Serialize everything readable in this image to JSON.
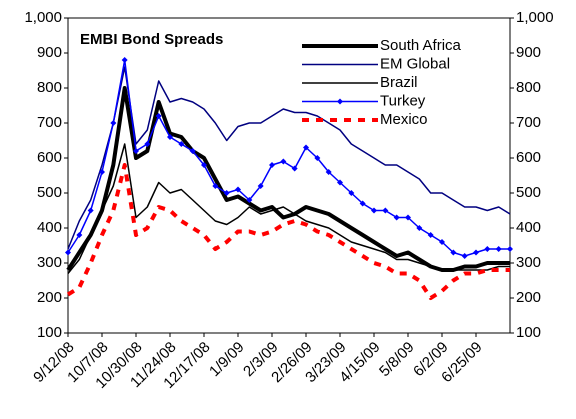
{
  "chart_data": {
    "type": "line",
    "title": "EMBI Bond Spreads",
    "categories": [
      "9/12/08",
      null,
      null,
      "10/7/08",
      null,
      null,
      "10/30/08",
      null,
      null,
      "11/24/08",
      null,
      null,
      "12/17/08",
      null,
      null,
      "1/9/09",
      null,
      null,
      "2/3/09",
      null,
      null,
      "2/26/09",
      null,
      null,
      "3/23/09",
      null,
      null,
      "4/15/09",
      null,
      null,
      "5/8/09",
      null,
      null,
      "6/2/09",
      null,
      null,
      "6/25/09",
      null,
      null,
      null
    ],
    "series": [
      {
        "name": "South Africa",
        "color": "#000000",
        "values": [
          280,
          330,
          380,
          450,
          580,
          800,
          600,
          620,
          760,
          670,
          660,
          620,
          600,
          540,
          480,
          490,
          470,
          450,
          460,
          430,
          440,
          460,
          450,
          440,
          420,
          400,
          380,
          360,
          340,
          320,
          330,
          310,
          290,
          280,
          280,
          290,
          290,
          300,
          300,
          300
        ]
      },
      {
        "name": "EM Global",
        "color": "#000080",
        "values": [
          340,
          420,
          480,
          580,
          700,
          860,
          640,
          680,
          820,
          760,
          770,
          760,
          740,
          700,
          650,
          690,
          700,
          700,
          720,
          740,
          730,
          730,
          720,
          700,
          680,
          640,
          620,
          600,
          580,
          580,
          560,
          540,
          500,
          500,
          480,
          460,
          460,
          450,
          460,
          440
        ]
      },
      {
        "name": "Brazil",
        "color": "#000000",
        "values": [
          270,
          310,
          380,
          450,
          520,
          640,
          430,
          460,
          530,
          500,
          510,
          480,
          450,
          420,
          410,
          430,
          460,
          440,
          450,
          460,
          440,
          420,
          410,
          400,
          380,
          360,
          350,
          340,
          330,
          310,
          310,
          300,
          290,
          280,
          280,
          280,
          280,
          280,
          290,
          290
        ]
      },
      {
        "name": "Turkey",
        "color": "#0000ff",
        "values": [
          330,
          380,
          450,
          560,
          700,
          880,
          620,
          640,
          720,
          660,
          640,
          620,
          580,
          520,
          500,
          510,
          480,
          520,
          580,
          590,
          570,
          630,
          600,
          560,
          530,
          500,
          470,
          450,
          450,
          430,
          430,
          400,
          380,
          360,
          330,
          320,
          330,
          340,
          340,
          340
        ]
      },
      {
        "name": "Mexico",
        "color": "#ff0000",
        "values": [
          210,
          230,
          300,
          380,
          450,
          580,
          380,
          400,
          460,
          450,
          420,
          400,
          380,
          340,
          360,
          390,
          390,
          380,
          390,
          410,
          420,
          410,
          390,
          380,
          360,
          340,
          320,
          300,
          290,
          270,
          270,
          250,
          200,
          220,
          250,
          270,
          270,
          280,
          280,
          280
        ]
      }
    ],
    "ylim": [
      100,
      1000
    ],
    "yticks": [
      100,
      200,
      300,
      400,
      500,
      600,
      700,
      800,
      900,
      {
        "value": 1000,
        "label": "1,000"
      }
    ],
    "y2lim": [
      100,
      1000
    ],
    "y2ticks": [
      100,
      200,
      300,
      400,
      500,
      600,
      700,
      800,
      900,
      {
        "value": 1000,
        "label": "1,000"
      }
    ]
  }
}
